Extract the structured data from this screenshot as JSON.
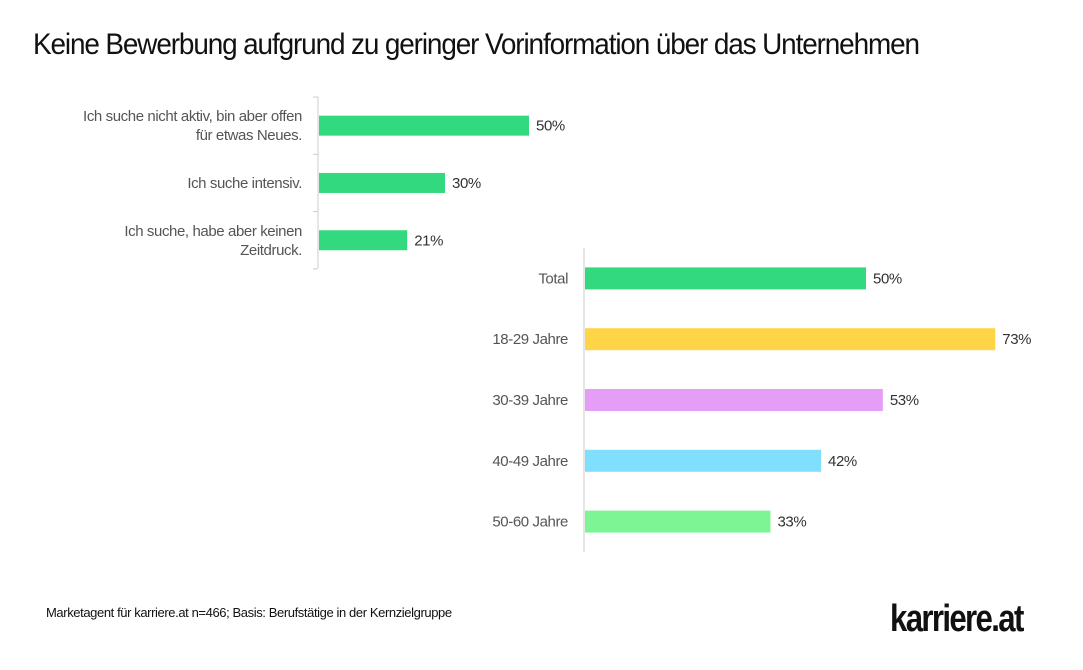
{
  "title": "Keine Bewerbung aufgrund zu geringer Vorinformation über das Unternehmen",
  "footnote": "Marketagent für karriere.at n=466; Basis: Berufstätige in der Kernzielgruppe",
  "logo": "karriere.at",
  "chart_data": [
    {
      "type": "bar",
      "orientation": "horizontal",
      "categories": [
        [
          "Ich suche nicht aktiv, bin aber offen",
          "für etwas Neues."
        ],
        [
          "Ich suche intensiv."
        ],
        [
          "Ich suche, habe aber keinen",
          "Zeitdruck."
        ]
      ],
      "values": [
        50,
        30,
        21
      ],
      "value_labels": [
        "50%",
        "30%",
        "21%"
      ],
      "colors": [
        "#33d97f",
        "#33d97f",
        "#33d97f"
      ],
      "unit": "%",
      "grid": false
    },
    {
      "type": "bar",
      "orientation": "horizontal",
      "categories": [
        [
          "Total"
        ],
        [
          "18-29 Jahre"
        ],
        [
          "30-39 Jahre"
        ],
        [
          "40-49 Jahre"
        ],
        [
          "50-60 Jahre"
        ]
      ],
      "values": [
        50,
        73,
        53,
        42,
        33
      ],
      "value_labels": [
        "50%",
        "73%",
        "53%",
        "42%",
        "33%"
      ],
      "colors": [
        "#33d97f",
        "#ffd447",
        "#e59ef7",
        "#80dfff",
        "#7df594"
      ],
      "unit": "%",
      "grid": false
    }
  ]
}
